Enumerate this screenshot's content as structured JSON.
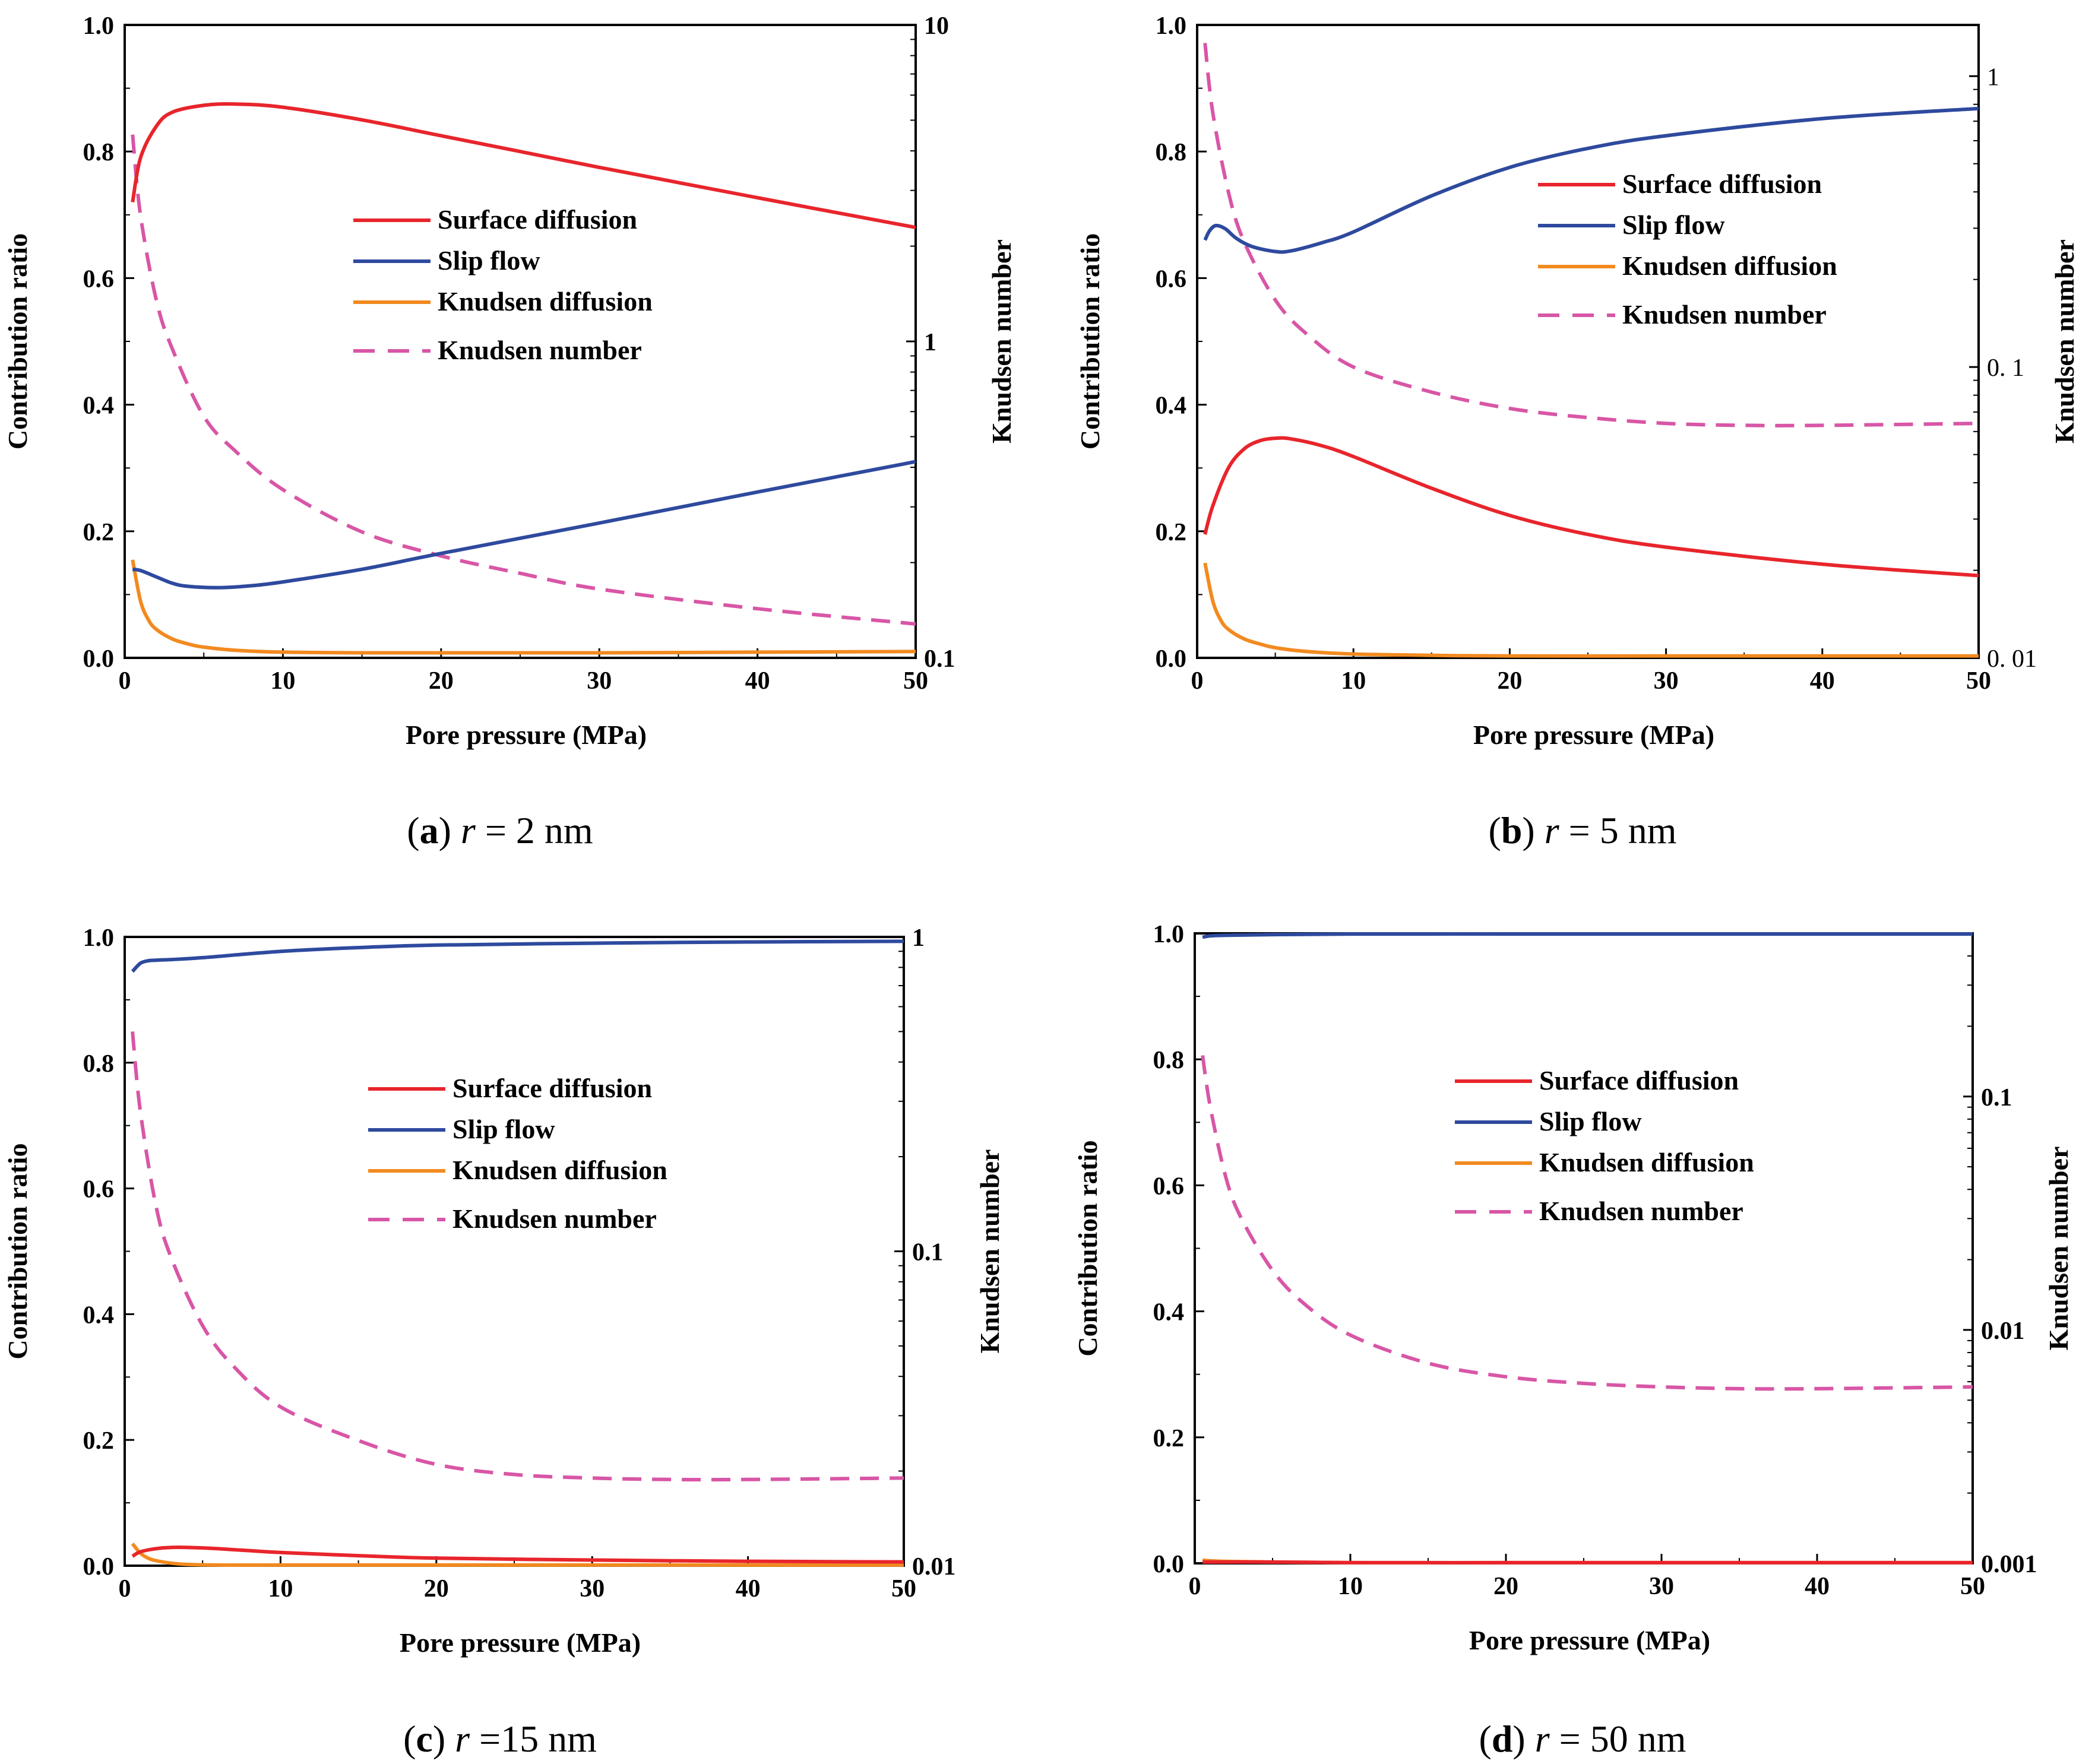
{
  "colors": {
    "surface": "#e8252c",
    "slip": "#2e4a9e",
    "knudsen_diffusion": "#f28a20",
    "knudsen_number": "#d856a6"
  },
  "chart_data": [
    {
      "type": "line",
      "panel": "a",
      "caption": {
        "letter": "a",
        "variable": "r",
        "text": " = 2 nm"
      },
      "xlabel": "Pore pressure (MPa)",
      "ylabel": "Contribution ratio",
      "y2label": "Knudsen number",
      "xlim": [
        0,
        50
      ],
      "ylim": [
        0,
        1
      ],
      "y2lim": [
        0.1,
        10
      ],
      "y2scale": "log",
      "xticks": [
        "0",
        "10",
        "20",
        "30",
        "40",
        "50"
      ],
      "yticks": [
        "0.0",
        "0.2",
        "0.4",
        "0.6",
        "0.8",
        "1.0"
      ],
      "y2ticks": [
        {
          "value": 0.1,
          "label": "0.1"
        },
        {
          "value": 1,
          "label": "1"
        },
        {
          "value": 10,
          "label": "10"
        }
      ],
      "legend": [
        "Surface diffusion",
        "Slip flow",
        "Knudsen diffusion",
        "Knudsen number"
      ],
      "series": [
        {
          "name": "Surface diffusion",
          "axis": "left",
          "x": [
            0.5,
            1,
            2,
            3,
            5,
            7,
            10,
            15,
            20,
            25,
            30,
            40,
            50
          ],
          "y": [
            0.72,
            0.79,
            0.84,
            0.862,
            0.873,
            0.875,
            0.87,
            0.85,
            0.825,
            0.8,
            0.775,
            0.727,
            0.68
          ]
        },
        {
          "name": "Slip flow",
          "axis": "left",
          "x": [
            0.5,
            1,
            2,
            3,
            4,
            6,
            8,
            10,
            15,
            20,
            30,
            40,
            50
          ],
          "y": [
            0.14,
            0.138,
            0.128,
            0.118,
            0.113,
            0.111,
            0.114,
            0.12,
            0.14,
            0.165,
            0.213,
            0.262,
            0.31
          ]
        },
        {
          "name": "Knudsen diffusion",
          "axis": "left",
          "x": [
            0.5,
            1,
            1.5,
            2,
            3,
            4,
            5,
            7,
            10,
            15,
            20,
            30,
            40,
            50
          ],
          "y": [
            0.155,
            0.09,
            0.06,
            0.045,
            0.03,
            0.022,
            0.017,
            0.012,
            0.009,
            0.008,
            0.008,
            0.008,
            0.009,
            0.01
          ]
        },
        {
          "name": "Knudsen number",
          "axis": "right",
          "dash": true,
          "x": [
            0.5,
            1,
            2,
            3,
            5,
            7,
            10,
            15,
            20,
            25,
            30,
            40,
            50
          ],
          "y": [
            4.5,
            2.5,
            1.35,
            0.95,
            0.58,
            0.45,
            0.34,
            0.25,
            0.21,
            0.185,
            0.165,
            0.143,
            0.128
          ]
        }
      ]
    },
    {
      "type": "line",
      "panel": "b",
      "caption": {
        "letter": "b",
        "variable": "r",
        "text": " = 5 nm"
      },
      "xlabel": "Pore pressure (MPa)",
      "ylabel": "Contribution ratio",
      "y2label": "Knudsen number",
      "xlim": [
        0,
        50
      ],
      "ylim": [
        0,
        1
      ],
      "y2lim": [
        0.01,
        1.5
      ],
      "y2scale": "log",
      "xticks": [
        "0",
        "10",
        "20",
        "30",
        "40",
        "50"
      ],
      "yticks": [
        "0.0",
        "0.2",
        "0.4",
        "0.6",
        "0.8",
        "1.0"
      ],
      "y2ticks": [
        {
          "value": 0.01,
          "label": "0. 01"
        },
        {
          "value": 0.1,
          "label": "0. 1"
        },
        {
          "value": 1,
          "label": "1"
        }
      ],
      "legend": [
        "Surface diffusion",
        "Slip flow",
        "Knudsen diffusion",
        "Knudsen number"
      ],
      "series": [
        {
          "name": "Surface diffusion",
          "axis": "left",
          "x": [
            0.5,
            1,
            2,
            3,
            4,
            5,
            6,
            8,
            10,
            15,
            20,
            25,
            30,
            40,
            50
          ],
          "y": [
            0.195,
            0.24,
            0.3,
            0.33,
            0.343,
            0.347,
            0.346,
            0.335,
            0.318,
            0.268,
            0.225,
            0.195,
            0.175,
            0.148,
            0.13
          ]
        },
        {
          "name": "Slip flow",
          "axis": "left",
          "x": [
            0.5,
            0.8,
            1.2,
            1.8,
            2.5,
            3.5,
            5,
            6,
            8,
            10,
            15,
            20,
            25,
            30,
            40,
            50
          ],
          "y": [
            0.66,
            0.675,
            0.683,
            0.678,
            0.663,
            0.65,
            0.642,
            0.643,
            0.656,
            0.673,
            0.73,
            0.775,
            0.805,
            0.825,
            0.852,
            0.868
          ]
        },
        {
          "name": "Knudsen diffusion",
          "axis": "left",
          "x": [
            0.5,
            1,
            1.5,
            2,
            3,
            4,
            5,
            7,
            10,
            15,
            20,
            30,
            40,
            50
          ],
          "y": [
            0.15,
            0.09,
            0.06,
            0.045,
            0.03,
            0.022,
            0.016,
            0.01,
            0.006,
            0.004,
            0.003,
            0.003,
            0.003,
            0.003
          ]
        },
        {
          "name": "Knudsen number",
          "axis": "right",
          "dash": true,
          "x": [
            0.5,
            1,
            2,
            3,
            5,
            7,
            10,
            15,
            20,
            25,
            30,
            35,
            40,
            50
          ],
          "y": [
            1.3,
            0.75,
            0.4,
            0.27,
            0.17,
            0.13,
            0.1,
            0.082,
            0.072,
            0.067,
            0.064,
            0.063,
            0.063,
            0.064
          ]
        }
      ]
    },
    {
      "type": "line",
      "panel": "c",
      "caption": {
        "letter": "c",
        "variable": "r",
        "text": " =15 nm"
      },
      "xlabel": "Pore pressure (MPa)",
      "ylabel": "Contribution ratio",
      "y2label": "Knudsen number",
      "xlim": [
        0,
        50
      ],
      "ylim": [
        0,
        1
      ],
      "y2lim": [
        0.01,
        1
      ],
      "y2scale": "log",
      "xticks": [
        "0",
        "10",
        "20",
        "30",
        "40",
        "50"
      ],
      "yticks": [
        "0.0",
        "0.2",
        "0.4",
        "0.6",
        "0.8",
        "1.0"
      ],
      "y2ticks": [
        {
          "value": 0.01,
          "label": "0.01"
        },
        {
          "value": 0.1,
          "label": "0.1"
        },
        {
          "value": 1,
          "label": "1"
        }
      ],
      "legend": [
        "Surface diffusion",
        "Slip flow",
        "Knudsen diffusion",
        "Knudsen number"
      ],
      "series": [
        {
          "name": "Surface diffusion",
          "axis": "left",
          "x": [
            0.5,
            1,
            2,
            3,
            4,
            6,
            10,
            15,
            20,
            30,
            40,
            50
          ],
          "y": [
            0.015,
            0.022,
            0.027,
            0.029,
            0.029,
            0.027,
            0.021,
            0.016,
            0.012,
            0.009,
            0.007,
            0.006
          ]
        },
        {
          "name": "Slip flow",
          "axis": "left",
          "x": [
            0.5,
            1,
            1.5,
            2,
            3,
            5,
            10,
            15,
            20,
            30,
            40,
            50
          ],
          "y": [
            0.945,
            0.958,
            0.962,
            0.963,
            0.964,
            0.967,
            0.977,
            0.983,
            0.987,
            0.99,
            0.992,
            0.993
          ]
        },
        {
          "name": "Knudsen diffusion",
          "axis": "left",
          "x": [
            0.5,
            1,
            1.5,
            2,
            3,
            4,
            6,
            10,
            20,
            50
          ],
          "y": [
            0.035,
            0.02,
            0.012,
            0.008,
            0.004,
            0.002,
            0.001,
            0.001,
            0.001,
            0.001
          ]
        },
        {
          "name": "Knudsen number",
          "axis": "right",
          "dash": true,
          "x": [
            0.5,
            1,
            2,
            3,
            5,
            7,
            10,
            15,
            20,
            25,
            30,
            35,
            40,
            50
          ],
          "y": [
            0.5,
            0.28,
            0.14,
            0.095,
            0.058,
            0.043,
            0.032,
            0.025,
            0.021,
            0.0195,
            0.019,
            0.0188,
            0.0188,
            0.019
          ]
        }
      ]
    },
    {
      "type": "line",
      "panel": "d",
      "caption": {
        "letter": "d",
        "variable": "r",
        "text": " = 50 nm"
      },
      "xlabel": "Pore pressure (MPa)",
      "ylabel": "Contribution ratio",
      "y2label": "Knudsen number",
      "xlim": [
        0,
        50
      ],
      "ylim": [
        0,
        1
      ],
      "y2lim": [
        0.001,
        0.5
      ],
      "y2scale": "log",
      "xticks": [
        "0",
        "10",
        "20",
        "30",
        "40",
        "50"
      ],
      "yticks": [
        "0.0",
        "0.2",
        "0.4",
        "0.6",
        "0.8",
        "1.0"
      ],
      "y2ticks": [
        {
          "value": 0.001,
          "label": "0.001"
        },
        {
          "value": 0.01,
          "label": "0.01"
        },
        {
          "value": 0.1,
          "label": "0.1"
        }
      ],
      "legend": [
        "Surface diffusion",
        "Slip flow",
        "Knudsen diffusion",
        "Knudsen number"
      ],
      "series": [
        {
          "name": "Surface diffusion",
          "axis": "left",
          "x": [
            0.5,
            5,
            10,
            20,
            30,
            40,
            50
          ],
          "y": [
            0.002,
            0.002,
            0.001,
            0.001,
            0.001,
            0.001,
            0.001
          ]
        },
        {
          "name": "Slip flow",
          "axis": "left",
          "x": [
            0.5,
            1,
            2,
            5,
            10,
            20,
            30,
            40,
            50
          ],
          "y": [
            0.994,
            0.996,
            0.997,
            0.998,
            0.999,
            0.999,
            0.999,
            0.999,
            0.999
          ]
        },
        {
          "name": "Knudsen diffusion",
          "axis": "left",
          "x": [
            0.5,
            1,
            2,
            5,
            10,
            20,
            50
          ],
          "y": [
            0.005,
            0.004,
            0.003,
            0.002,
            0.001,
            0.001,
            0.001
          ]
        },
        {
          "name": "Knudsen number",
          "axis": "right",
          "dash": true,
          "x": [
            0.5,
            1,
            2,
            3,
            5,
            7,
            10,
            15,
            20,
            25,
            30,
            35,
            40,
            50
          ],
          "y": [
            0.15,
            0.09,
            0.045,
            0.03,
            0.018,
            0.013,
            0.0095,
            0.0072,
            0.0063,
            0.0059,
            0.0057,
            0.0056,
            0.0056,
            0.0057
          ]
        }
      ]
    }
  ]
}
